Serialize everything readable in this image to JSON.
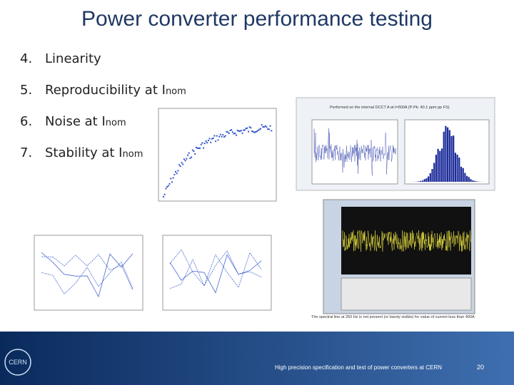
{
  "header": {
    "title": "Power converter performance testing"
  },
  "items": [
    {
      "number": "4.",
      "text": "Linearity"
    },
    {
      "number": "5.",
      "text": "Reproducibility at I",
      "sub": "nom"
    },
    {
      "number": "6.",
      "text": "Noise at I",
      "sub": "nom"
    },
    {
      "number": "7.",
      "text": "Stability at I",
      "sub": "nom"
    }
  ],
  "captions": {
    "noise": "Performed on the internal DCCT A at I=500A (P-Pk: 40.1 ppm pp FS)",
    "spectrum": "The spectral line at 250 Hz is not present (or barely visible) for value of current less than 400A"
  },
  "footer": {
    "logo": "CERN",
    "text": "High precision specification and test of power converters at CERN",
    "page": "20"
  }
}
